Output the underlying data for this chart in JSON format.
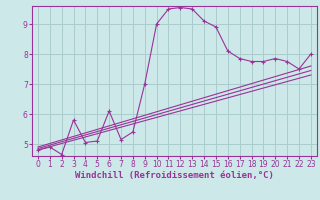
{
  "background_color": "#cce8e8",
  "grid_color": "#aacccc",
  "line_color": "#993399",
  "spine_color": "#993399",
  "xlim": [
    -0.5,
    23.5
  ],
  "ylim": [
    4.6,
    9.6
  ],
  "xticks": [
    0,
    1,
    2,
    3,
    4,
    5,
    6,
    7,
    8,
    9,
    10,
    11,
    12,
    13,
    14,
    15,
    16,
    17,
    18,
    19,
    20,
    21,
    22,
    23
  ],
  "yticks": [
    5,
    6,
    7,
    8,
    9
  ],
  "xlabel": "Windchill (Refroidissement éolien,°C)",
  "series1_x": [
    0,
    1,
    2,
    3,
    4,
    5,
    6,
    7,
    8,
    9,
    10,
    11,
    12,
    13,
    14,
    15,
    16,
    17,
    18,
    19,
    20,
    21,
    22,
    23
  ],
  "series1_y": [
    4.8,
    4.9,
    4.65,
    5.8,
    5.05,
    5.1,
    6.1,
    5.15,
    5.4,
    7.0,
    9.0,
    9.5,
    9.55,
    9.5,
    9.1,
    8.9,
    8.1,
    7.85,
    7.75,
    7.75,
    7.85,
    7.75,
    7.5,
    8.0
  ],
  "series2_x": [
    0,
    23
  ],
  "series2_y": [
    4.8,
    7.3
  ],
  "series3_x": [
    0,
    23
  ],
  "series3_y": [
    4.85,
    7.45
  ],
  "series4_x": [
    0,
    23
  ],
  "series4_y": [
    4.9,
    7.6
  ],
  "tick_fontsize": 5.5,
  "label_fontsize": 6.5
}
